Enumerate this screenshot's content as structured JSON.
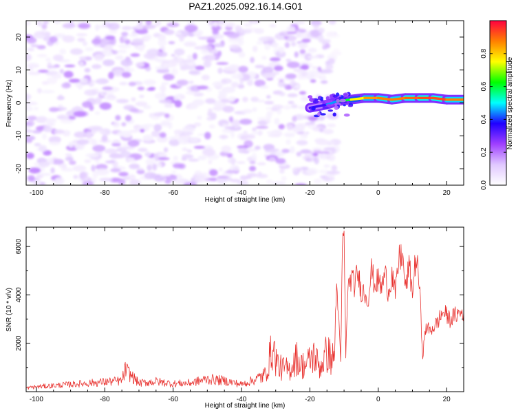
{
  "title": "PAZ1.2025.092.16.14.G01",
  "chart_data": [
    {
      "type": "heatmap",
      "xlabel": "Height of straight line (km)",
      "ylabel": "Frequency (Hz)",
      "xlim": [
        -103,
        25
      ],
      "ylim": [
        -25,
        25
      ],
      "xticks": [
        -100,
        -80,
        -60,
        -40,
        -20,
        0,
        20
      ],
      "yticks": [
        -20,
        -10,
        0,
        10,
        20
      ],
      "colorbar": {
        "label": "Normalized spectral amplitude",
        "range": [
          0,
          1
        ],
        "ticks": [
          0.0,
          0.2,
          0.4,
          0.6,
          0.8
        ],
        "tick_labels": [
          "0.0",
          "0.2",
          "0.4",
          "0.6",
          "0.8"
        ],
        "stops": [
          "#ffffff",
          "#e0c8ff",
          "#9f3fff",
          "#2000ff",
          "#00ffff",
          "#00ff00",
          "#ffff00",
          "#ff8000",
          "#ff0040"
        ]
      },
      "noise_region": {
        "x": [
          -103,
          -12
        ],
        "y": [
          -25,
          25
        ],
        "typical_amplitude": 0.15
      },
      "signal_ridge": {
        "x": [
          -20,
          -15,
          -12,
          -8,
          -4,
          0,
          4,
          8,
          12,
          16,
          20,
          25
        ],
        "frequency": [
          -1.5,
          -0.5,
          0.5,
          1.0,
          1.5,
          1.5,
          1.0,
          1.5,
          1.5,
          1.5,
          1.0,
          1.0
        ],
        "amplitude": [
          0.3,
          0.4,
          0.5,
          0.7,
          0.8,
          0.9,
          0.85,
          0.9,
          0.9,
          0.95,
          0.9,
          0.85
        ]
      }
    },
    {
      "type": "line",
      "xlabel": "Height of straight line (km)",
      "ylabel": "SNR (10 * v/v)",
      "xlim": [
        -103,
        25
      ],
      "ylim": [
        0,
        6800
      ],
      "xticks": [
        -100,
        -80,
        -60,
        -40,
        -20,
        0,
        20
      ],
      "yticks": [
        2000,
        4000,
        6000
      ],
      "color": "#e8312e",
      "series": [
        {
          "name": "SNR",
          "x": [
            -103,
            -100,
            -95,
            -90,
            -85,
            -80,
            -75,
            -74,
            -70,
            -65,
            -60,
            -55,
            -50,
            -45,
            -40,
            -36,
            -33,
            -31,
            -29,
            -26,
            -24,
            -22.5,
            -21,
            -19,
            -17,
            -15,
            -13,
            -12,
            -11,
            -10.5,
            -10,
            -9.5,
            -9,
            -8,
            -7,
            -6,
            -5,
            -4,
            -3,
            -2,
            -1,
            0,
            1,
            2,
            3,
            4,
            5,
            6,
            7,
            8,
            9,
            10,
            11,
            12,
            13,
            14,
            15,
            17,
            19,
            21,
            23,
            25
          ],
          "y": [
            150,
            200,
            250,
            300,
            350,
            400,
            450,
            900,
            350,
            420,
            330,
            360,
            520,
            450,
            300,
            500,
            700,
            1800,
            1000,
            900,
            1400,
            1100,
            1100,
            1500,
            1000,
            1600,
            1300,
            4300,
            1200,
            5700,
            6800,
            1300,
            4100,
            4700,
            4400,
            4900,
            4200,
            4100,
            3800,
            5000,
            4400,
            4600,
            4300,
            4900,
            4100,
            4900,
            4000,
            5400,
            5700,
            4200,
            5200,
            4100,
            5600,
            4500,
            1500,
            2700,
            2500,
            2800,
            3300,
            3000,
            3200,
            3300
          ]
        }
      ]
    }
  ]
}
